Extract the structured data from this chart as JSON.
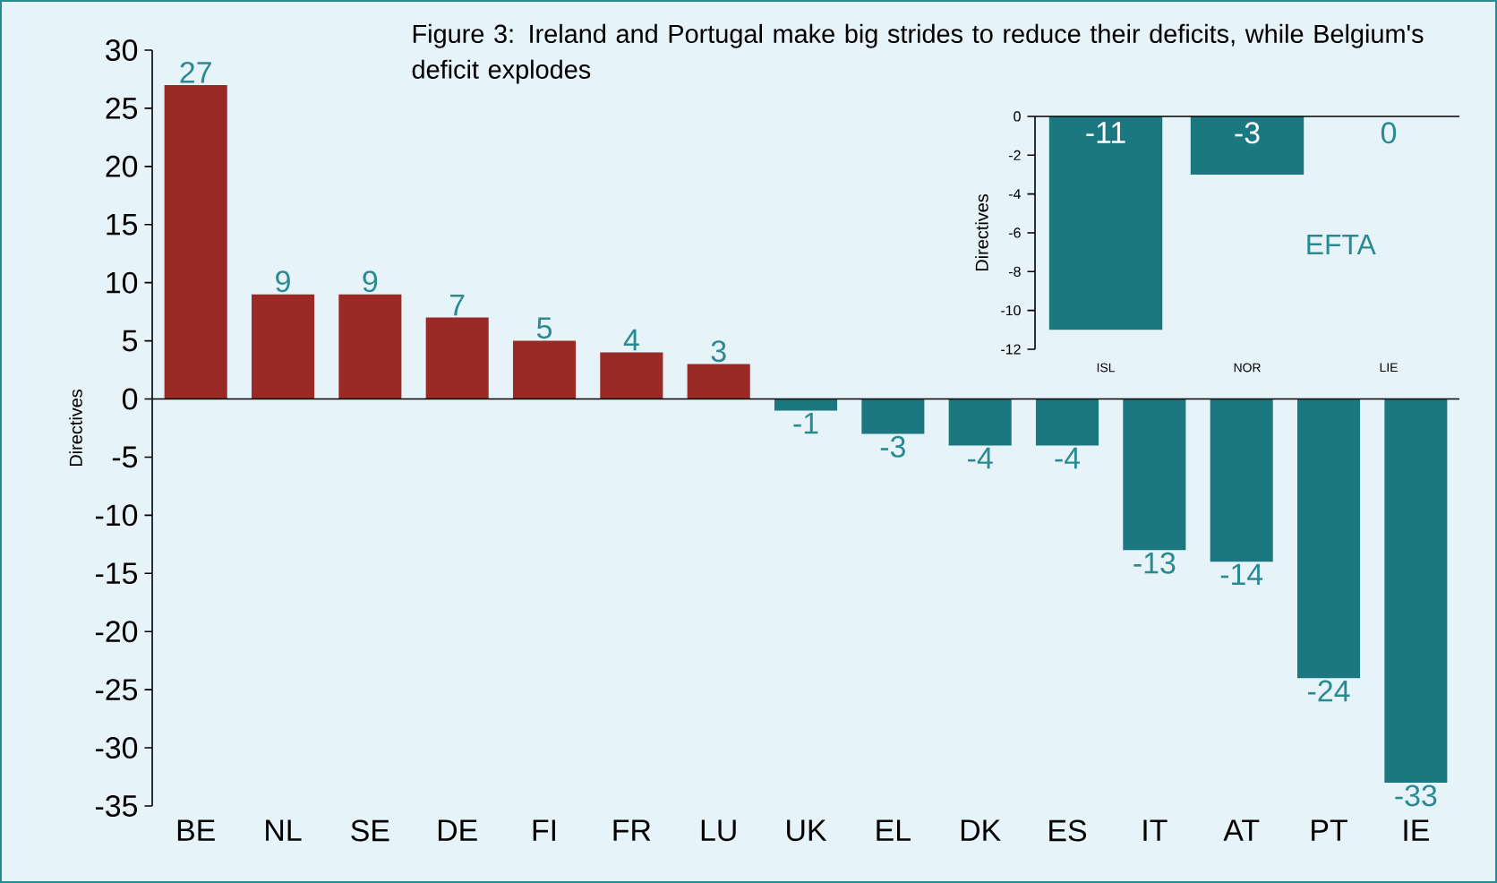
{
  "chart_data": [
    {
      "type": "bar",
      "title": "Figure 3: Ireland and Portugal make big strides to reduce their deficits, while Belgium's deficit explodes",
      "ylabel": "Directives",
      "categories": [
        "BE",
        "NL",
        "SE",
        "DE",
        "FI",
        "FR",
        "LU",
        "UK",
        "EL",
        "DK",
        "ES",
        "IT",
        "AT",
        "PT",
        "IE"
      ],
      "values": [
        27,
        9,
        9,
        7,
        5,
        4,
        3,
        -1,
        -3,
        -4,
        -4,
        -13,
        -14,
        -24,
        -33
      ],
      "colors": [
        "#9a2a26",
        "#9a2a26",
        "#9a2a26",
        "#9a2a26",
        "#9a2a26",
        "#9a2a26",
        "#9a2a26",
        "#1c7880",
        "#1c7880",
        "#1c7880",
        "#1c7880",
        "#1c7880",
        "#1c7880",
        "#1c7880",
        "#1c7880"
      ],
      "ylim": [
        -35,
        30
      ],
      "yticks": [
        -35,
        -30,
        -25,
        -20,
        -15,
        -10,
        -5,
        0,
        5,
        10,
        15,
        20,
        25,
        30
      ],
      "data_labels": true
    },
    {
      "type": "bar",
      "title": "EFTA",
      "ylabel": "Directives",
      "categories": [
        "ISL",
        "NOR",
        "LIE"
      ],
      "values": [
        -11,
        -3,
        0
      ],
      "colors": [
        "#1c7880",
        "#1c7880",
        "#1c7880"
      ],
      "ylim": [
        -12,
        0
      ],
      "yticks": [
        -12,
        -10,
        -8,
        -6,
        -4,
        -2,
        0
      ],
      "data_labels": true
    }
  ]
}
